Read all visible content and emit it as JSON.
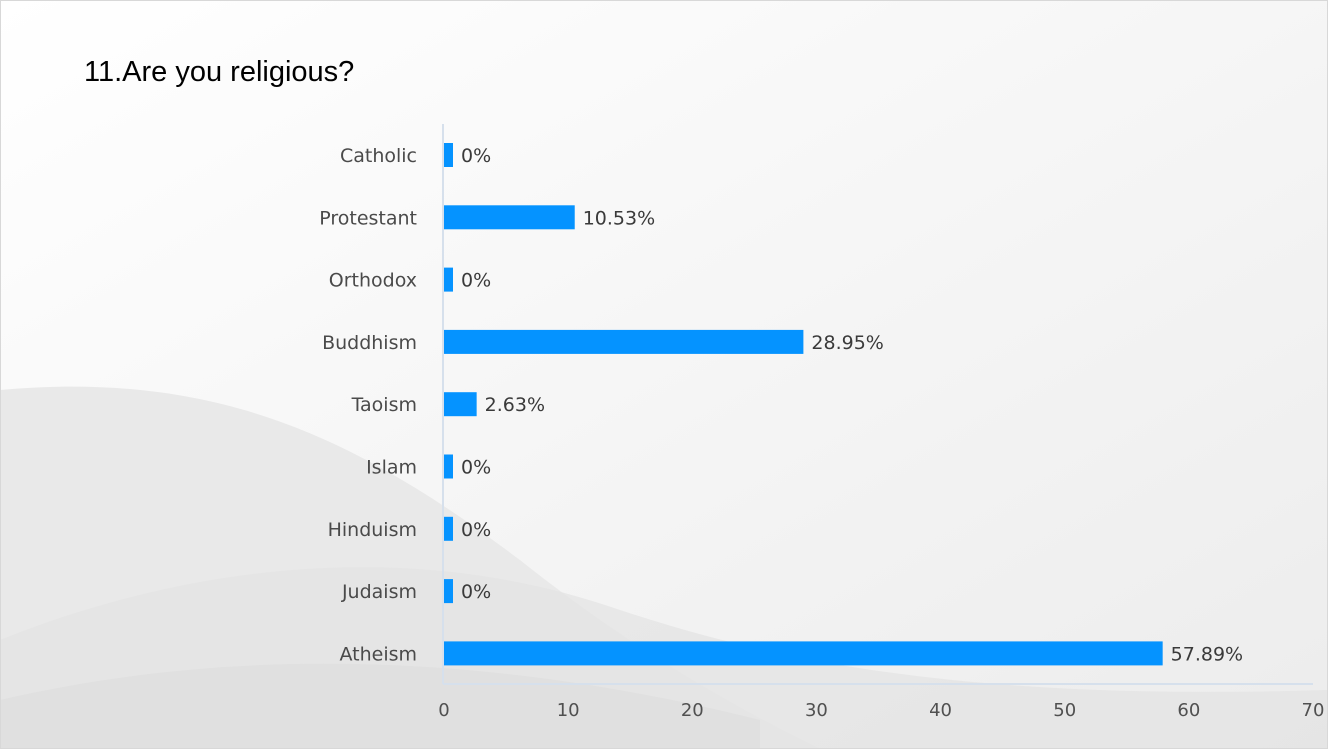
{
  "slide": {
    "title": "11.Are you religious?"
  },
  "chart_data": {
    "type": "bar",
    "orientation": "horizontal",
    "title": "11.Are you religious?",
    "categories": [
      "Catholic",
      "Protestant",
      "Orthodox",
      "Buddhism",
      "Taoism",
      "Islam",
      "Hinduism",
      "Judaism",
      "Atheism"
    ],
    "values": [
      0,
      10.53,
      0,
      28.95,
      2.63,
      0,
      0,
      0,
      57.89
    ],
    "value_labels": [
      "0%",
      "10.53%",
      "0%",
      "28.95%",
      "2.63%",
      "0%",
      "0%",
      "0%",
      "57.89%"
    ],
    "xlim": [
      0,
      70
    ],
    "xticks": [
      0,
      10,
      20,
      30,
      40,
      50,
      60,
      70
    ],
    "xlabel": "",
    "ylabel": "",
    "grid": false,
    "legend": "none",
    "colors": {
      "bar": "#0593FF",
      "axis": "#d6e0ec"
    }
  }
}
